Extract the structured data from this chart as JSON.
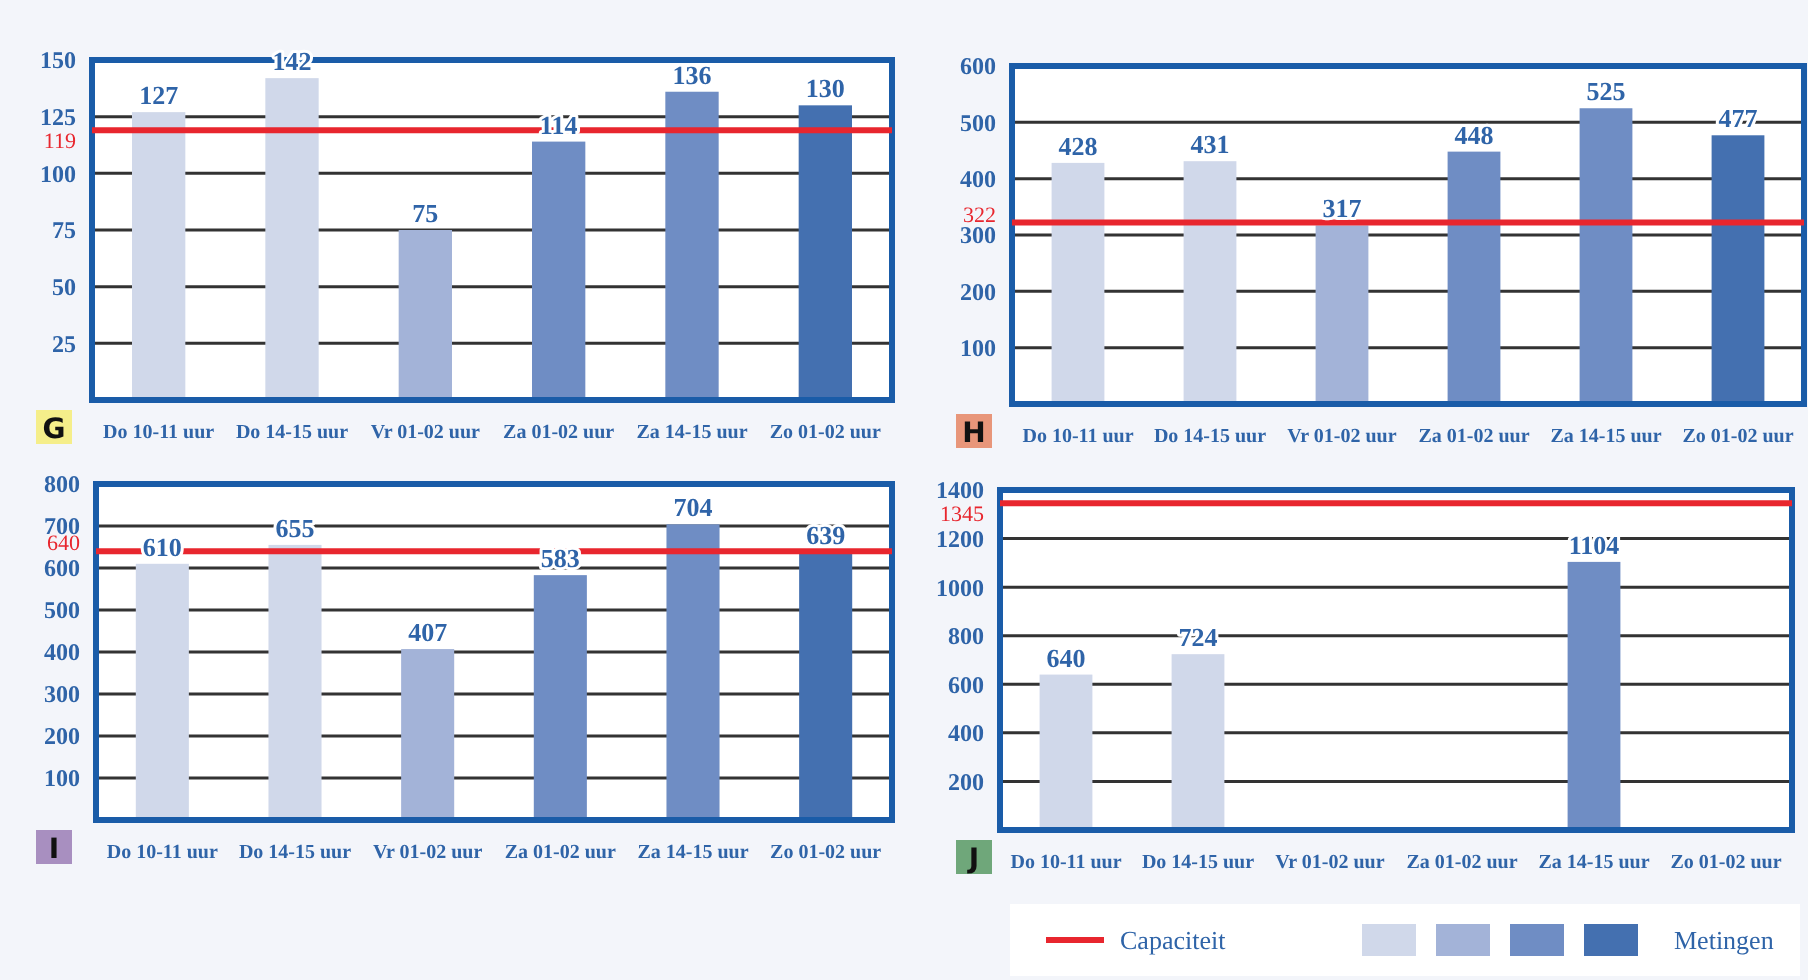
{
  "chart_data": [
    {
      "type": "bar",
      "title": "G",
      "categories": [
        "Do 10-11 uur",
        "Do 14-15 uur",
        "Vr 01-02 uur",
        "Za 01-02 uur",
        "Za 14-15 uur",
        "Zo 01-02 uur"
      ],
      "values": [
        127,
        142,
        75,
        114,
        136,
        130
      ],
      "colors": [
        "#d0d8ea",
        "#d0d8ea",
        "#a3b3d8",
        "#6f8dc4",
        "#6f8dc4",
        "#4470b0"
      ],
      "ylim": [
        0,
        150
      ],
      "yticks": [
        25,
        50,
        75,
        100,
        125,
        150
      ],
      "grid": "y",
      "data_labels": true,
      "ref_lines": [
        {
          "axis": "y",
          "value": 119,
          "label": "119",
          "color": "#e8262e"
        }
      ]
    },
    {
      "type": "bar",
      "title": "H",
      "categories": [
        "Do 10-11 uur",
        "Do 14-15 uur",
        "Vr 01-02 uur",
        "Za 01-02 uur",
        "Za 14-15 uur",
        "Zo 01-02 uur"
      ],
      "values": [
        428,
        431,
        317,
        448,
        525,
        477
      ],
      "colors": [
        "#d0d8ea",
        "#d0d8ea",
        "#a3b3d8",
        "#6f8dc4",
        "#6f8dc4",
        "#4470b0"
      ],
      "ylim": [
        0,
        600
      ],
      "yticks": [
        100,
        200,
        300,
        400,
        500,
        600
      ],
      "grid": "y",
      "data_labels": true,
      "ref_lines": [
        {
          "axis": "y",
          "value": 322,
          "label": "322",
          "color": "#e8262e"
        }
      ]
    },
    {
      "type": "bar",
      "title": "I",
      "categories": [
        "Do 10-11 uur",
        "Do 14-15 uur",
        "Vr 01-02 uur",
        "Za 01-02 uur",
        "Za 14-15 uur",
        "Zo 01-02 uur"
      ],
      "values": [
        610,
        655,
        407,
        583,
        704,
        639
      ],
      "colors": [
        "#d0d8ea",
        "#d0d8ea",
        "#a3b3d8",
        "#6f8dc4",
        "#6f8dc4",
        "#4470b0"
      ],
      "ylim": [
        0,
        800
      ],
      "yticks": [
        100,
        200,
        300,
        400,
        500,
        600,
        700,
        800
      ],
      "grid": "y",
      "data_labels": true,
      "ref_lines": [
        {
          "axis": "y",
          "value": 640,
          "label": "640",
          "color": "#e8262e"
        }
      ]
    },
    {
      "type": "bar",
      "title": "J",
      "categories": [
        "Do 10-11 uur",
        "Do 14-15 uur",
        "Vr 01-02 uur",
        "Za 01-02 uur",
        "Za 14-15 uur",
        "Zo 01-02 uur"
      ],
      "values": [
        640,
        724,
        null,
        null,
        1104,
        null
      ],
      "colors": [
        "#d0d8ea",
        "#d0d8ea",
        "#a3b3d8",
        "#6f8dc4",
        "#6f8dc4",
        "#4470b0"
      ],
      "ylim": [
        0,
        1400
      ],
      "yticks": [
        200,
        400,
        600,
        800,
        1000,
        1200,
        1400
      ],
      "grid": "y",
      "data_labels": true,
      "ref_lines": [
        {
          "axis": "y",
          "value": 1345,
          "label": "1345",
          "color": "#e8262e"
        }
      ]
    },
    {
      "type": "other",
      "annotations": [
        "Capaciteit",
        "Metingen"
      ]
    }
  ]
}
